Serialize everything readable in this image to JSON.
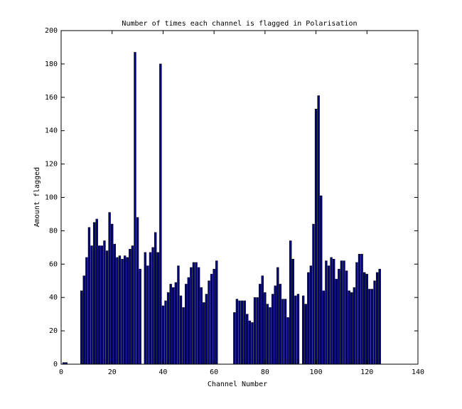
{
  "chart_data": {
    "type": "bar",
    "title": "Number of times each channel is flagged in Polarisation",
    "xlabel": "Channel Number",
    "ylabel": "Amount flagged",
    "color": "#00007f",
    "edgecolor": "#000000",
    "x": [
      1,
      2,
      3,
      4,
      5,
      6,
      7,
      8,
      9,
      10,
      11,
      12,
      13,
      14,
      15,
      16,
      17,
      18,
      19,
      20,
      21,
      22,
      23,
      24,
      25,
      26,
      27,
      28,
      29,
      30,
      31,
      32,
      33,
      34,
      35,
      36,
      37,
      38,
      39,
      40,
      41,
      42,
      43,
      44,
      45,
      46,
      47,
      48,
      49,
      50,
      51,
      52,
      53,
      54,
      55,
      56,
      57,
      58,
      59,
      60,
      61,
      62,
      63,
      64,
      65,
      66,
      67,
      68,
      69,
      70,
      71,
      72,
      73,
      74,
      75,
      76,
      77,
      78,
      79,
      80,
      81,
      82,
      83,
      84,
      85,
      86,
      87,
      88,
      89,
      90,
      91,
      92,
      93,
      94,
      95,
      96,
      97,
      98,
      99,
      100,
      101,
      102,
      103,
      104,
      105,
      106,
      107,
      108,
      109,
      110,
      111,
      112,
      113,
      114,
      115,
      116,
      117,
      118,
      119,
      120,
      121,
      122,
      123,
      124,
      125
    ],
    "values": [
      1,
      1,
      0,
      0,
      0,
      0,
      0,
      44,
      53,
      64,
      82,
      71,
      85,
      87,
      71,
      71,
      74,
      68,
      91,
      84,
      72,
      64,
      65,
      63,
      65,
      64,
      69,
      71,
      187,
      88,
      57,
      0,
      67,
      59,
      67,
      70,
      79,
      67,
      180,
      35,
      38,
      43,
      48,
      46,
      49,
      59,
      41,
      34,
      48,
      52,
      58,
      61,
      61,
      58,
      46,
      37,
      42,
      50,
      54,
      57,
      62,
      0,
      0,
      0,
      0,
      0,
      0,
      31,
      39,
      38,
      38,
      38,
      30,
      26,
      25,
      40,
      40,
      48,
      53,
      43,
      36,
      34,
      42,
      47,
      58,
      48,
      39,
      39,
      28,
      74,
      63,
      41,
      42,
      0,
      41,
      36,
      55,
      59,
      84,
      153,
      161,
      101,
      44,
      62,
      59,
      64,
      63,
      51,
      57,
      62,
      62,
      56,
      44,
      43,
      46,
      61,
      66,
      66,
      55,
      54,
      45,
      45,
      50,
      55,
      57
    ],
    "xlim": [
      0,
      140
    ],
    "xticks": [
      0,
      20,
      40,
      60,
      80,
      100,
      120,
      140
    ],
    "ylim": [
      0,
      200
    ],
    "yticks": [
      0,
      20,
      40,
      60,
      80,
      100,
      120,
      140,
      160,
      180,
      200
    ],
    "grid": false
  }
}
